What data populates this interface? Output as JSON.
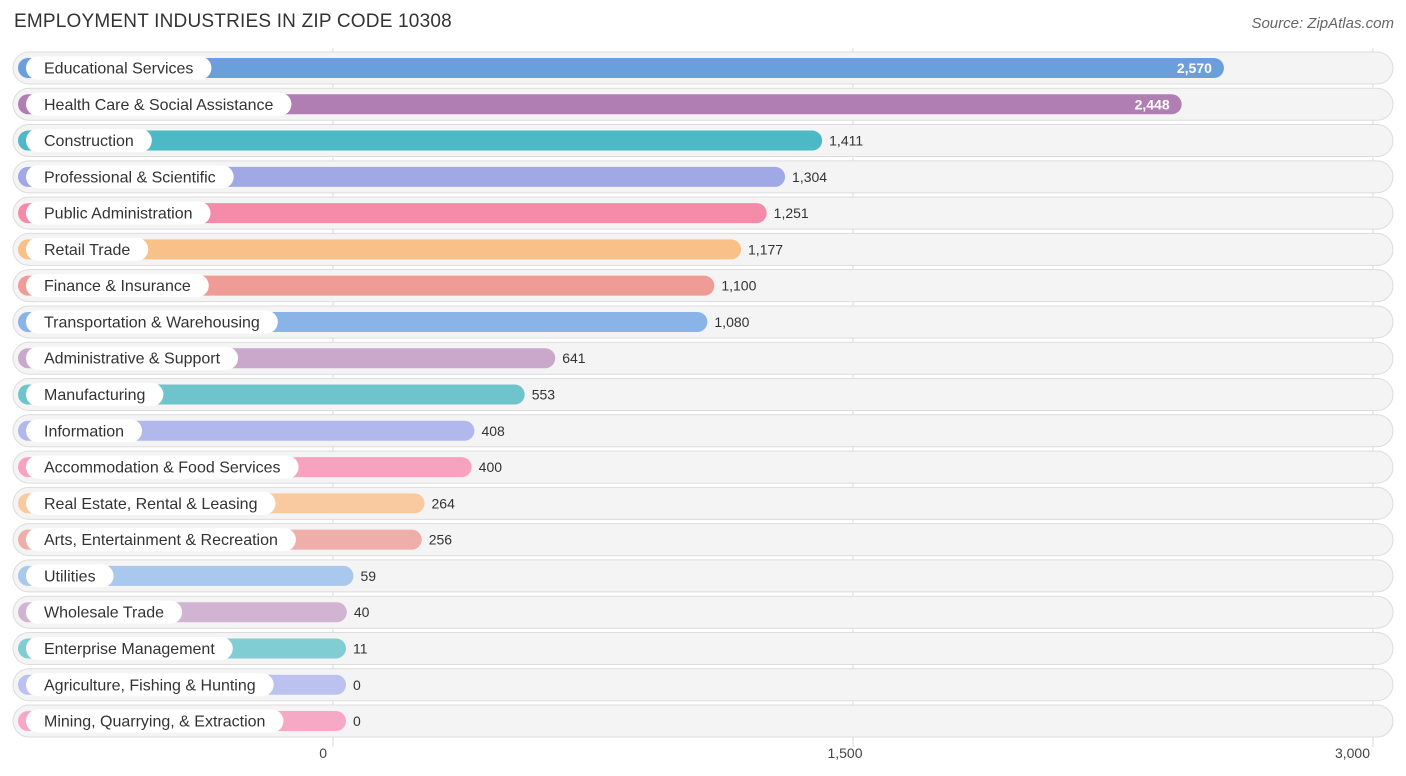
{
  "chart_data": {
    "type": "bar",
    "orientation": "horizontal",
    "title": "EMPLOYMENT INDUSTRIES IN ZIP CODE 10308",
    "source": "Source: ZipAtlas.com",
    "xlim": [
      0,
      3000
    ],
    "ticks": [
      {
        "value": 0,
        "label": "0"
      },
      {
        "value": 1500,
        "label": "1,500"
      },
      {
        "value": 3000,
        "label": "3,000"
      }
    ],
    "grid": true,
    "bars": [
      {
        "label": "Educational Services",
        "value": 2570,
        "display": "2,570",
        "color": "#6a9fdc"
      },
      {
        "label": "Health Care & Social Assistance",
        "value": 2448,
        "display": "2,448",
        "color": "#b07eb3"
      },
      {
        "label": "Construction",
        "value": 1411,
        "display": "1,411",
        "color": "#4db8c6"
      },
      {
        "label": "Professional & Scientific",
        "value": 1304,
        "display": "1,304",
        "color": "#a0a8e6"
      },
      {
        "label": "Public Administration",
        "value": 1251,
        "display": "1,251",
        "color": "#f58aa9"
      },
      {
        "label": "Retail Trade",
        "value": 1177,
        "display": "1,177",
        "color": "#f9c088"
      },
      {
        "label": "Finance & Insurance",
        "value": 1100,
        "display": "1,100",
        "color": "#ee9c95"
      },
      {
        "label": "Transportation & Warehousing",
        "value": 1080,
        "display": "1,080",
        "color": "#8ab4e8"
      },
      {
        "label": "Administrative & Support",
        "value": 641,
        "display": "641",
        "color": "#c9a8cc"
      },
      {
        "label": "Manufacturing",
        "value": 553,
        "display": "553",
        "color": "#6fc4cc"
      },
      {
        "label": "Information",
        "value": 408,
        "display": "408",
        "color": "#b0b8ec"
      },
      {
        "label": "Accommodation & Food Services",
        "value": 400,
        "display": "400",
        "color": "#f7a3bf"
      },
      {
        "label": "Real Estate, Rental & Leasing",
        "value": 264,
        "display": "264",
        "color": "#f9caa0"
      },
      {
        "label": "Arts, Entertainment & Recreation",
        "value": 256,
        "display": "256",
        "color": "#efaeaa"
      },
      {
        "label": "Utilities",
        "value": 59,
        "display": "59",
        "color": "#a8c8ee"
      },
      {
        "label": "Wholesale Trade",
        "value": 40,
        "display": "40",
        "color": "#d0b4d2"
      },
      {
        "label": "Enterprise Management",
        "value": 11,
        "display": "11",
        "color": "#80cdd4"
      },
      {
        "label": "Agriculture, Fishing & Hunting",
        "value": 0,
        "display": "0",
        "color": "#bcc2f0"
      },
      {
        "label": "Mining, Quarrying, & Extraction",
        "value": 0,
        "display": "0",
        "color": "#f7a8c4"
      }
    ]
  }
}
